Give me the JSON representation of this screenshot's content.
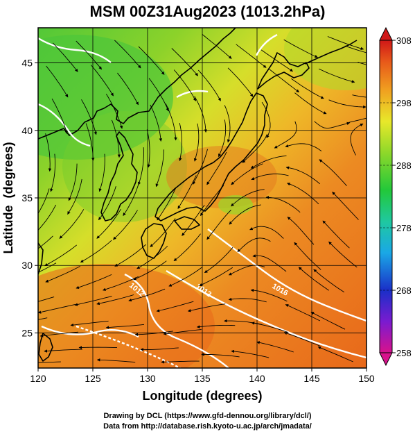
{
  "title": "MSM 00Z31Aug2023 (1013.2hPa)",
  "x_axis": {
    "label": "Longitude (degrees)",
    "range": [
      120,
      150
    ],
    "ticks": [
      120,
      125,
      130,
      135,
      140,
      145,
      150
    ]
  },
  "y_axis": {
    "label": "Latitude  (degrees)",
    "range": [
      22.4,
      47.6
    ],
    "ticks": [
      25,
      30,
      35,
      40,
      45
    ]
  },
  "colorbar": {
    "range": [
      258,
      308
    ],
    "ticks": [
      258,
      268,
      278,
      288,
      298,
      308
    ],
    "colors": [
      "#d8128c",
      "#7a1bd0",
      "#1a2fc8",
      "#1aa8e6",
      "#1fc8a0",
      "#22c83a",
      "#8ed82a",
      "#e8e82a",
      "#f0a020",
      "#e85a1a",
      "#d01818"
    ]
  },
  "isobars": [
    {
      "label": "1012"
    },
    {
      "label": "1012"
    },
    {
      "label": "1016"
    }
  ],
  "credits": {
    "drawing": "Drawing by DCL (https://www.gfd-dennou.org/library/dcl/)",
    "data": "Data from http://database.rish.kyoto-u.ac.jp/arch/jmadata/"
  }
}
